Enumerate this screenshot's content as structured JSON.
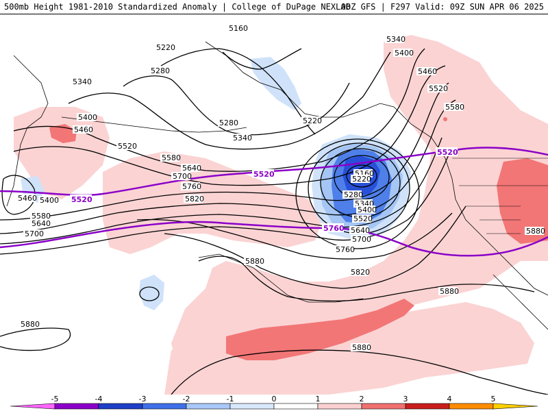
{
  "header": {
    "title": "500mb Height 1981-2010 Standardized Anomaly | College of DuPage NEXLAB",
    "run_info": "00Z GFS | F297 Valid: 09Z SUN APR 06 2025"
  },
  "contour_labels": [
    {
      "text": "5160"
    },
    {
      "text": "5220"
    },
    {
      "text": "5280"
    },
    {
      "text": "5340"
    },
    {
      "text": "5400"
    },
    {
      "text": "5460"
    },
    {
      "text": "5520"
    },
    {
      "text": "5580"
    },
    {
      "text": "5640"
    },
    {
      "text": "5700"
    },
    {
      "text": "5760"
    },
    {
      "text": "5820"
    },
    {
      "text": "5880"
    }
  ],
  "climo_labels": [
    {
      "text": "5520"
    },
    {
      "text": "5760"
    }
  ],
  "colorbar": {
    "ticks": [
      "-5",
      "-4",
      "-3",
      "-2",
      "-1",
      "0",
      "1",
      "2",
      "3",
      "4",
      "5"
    ],
    "colors": [
      "#ff66ff",
      "#8b00c8",
      "#1f3fc8",
      "#3f6fe8",
      "#a8c8f8",
      "#d8e8fc",
      "#ffffff",
      "#fbd0d0",
      "#f07070",
      "#c81e1e",
      "#ff8c00",
      "#ffd000"
    ]
  },
  "colors": {
    "pos1": "#fbd3d3",
    "pos2": "#f27676",
    "neg1": "#cfe2fa",
    "neg2": "#a5c6f4",
    "neg3": "#4f7fe8",
    "neg4": "#2850d8",
    "climo_line": "#8a00c8"
  }
}
